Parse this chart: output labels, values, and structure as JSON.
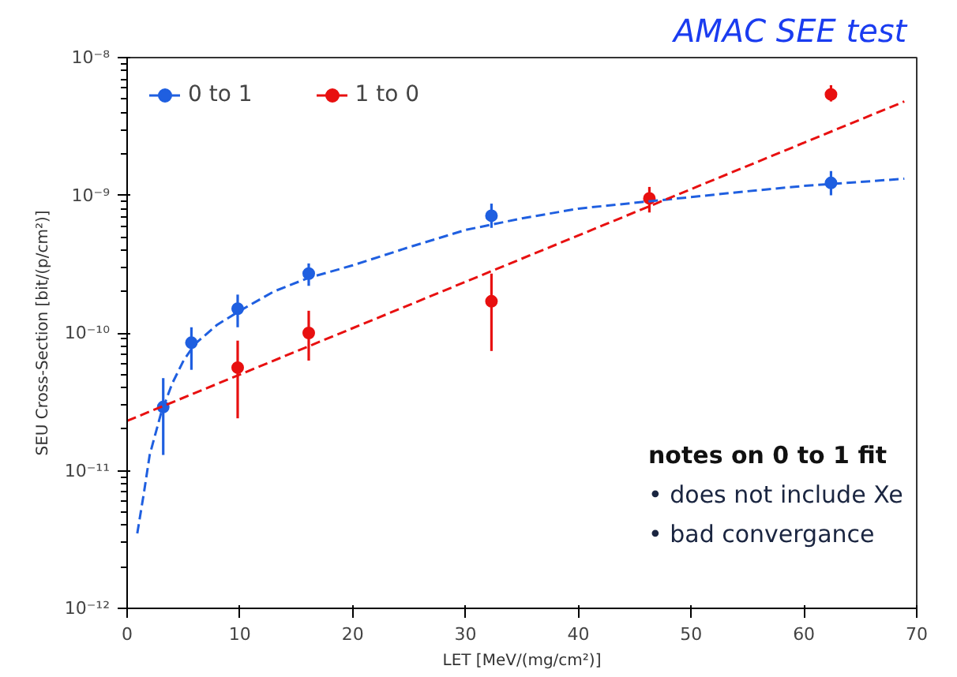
{
  "chart_data": {
    "type": "scatter",
    "title": "AMAC SEE  test",
    "xlabel": "LET [MeV/(mg/cm²)]",
    "ylabel": "SEU Cross-Section [bit/(p/cm²)]",
    "xlim": [
      0,
      70
    ],
    "xticks": [
      0,
      10,
      20,
      30,
      40,
      50,
      60,
      70
    ],
    "ylim": [
      1e-12,
      1e-08
    ],
    "yticks": [
      {
        "value": 1e-12,
        "label": "10⁻¹²"
      },
      {
        "value": 1e-11,
        "label": "10⁻¹¹"
      },
      {
        "value": 1e-10,
        "label": "10⁻¹⁰"
      },
      {
        "value": 1e-09,
        "label": "10⁻⁹"
      },
      {
        "value": 1e-08,
        "label": "10⁻⁸"
      }
    ],
    "log": "y",
    "grid": false,
    "legend": "top left",
    "marker": "circle",
    "annotations": [
      "notes on 0 to 1 fit",
      "•    does not include Xe",
      "•    bad convergance"
    ],
    "series": [
      {
        "name": "0 to 1",
        "color": "#1f5fe0",
        "x": [
          3.2,
          5.7,
          9.8,
          16.1,
          32.3,
          62.4
        ],
        "values": [
          2.9e-11,
          8.5e-11,
          1.5e-10,
          2.7e-10,
          7.1e-10,
          1.23e-09
        ],
        "errors": [
          [
            1.3e-11,
            4.7e-11
          ],
          [
            5.4e-11,
            1.1e-10
          ],
          [
            1.1e-10,
            1.9e-10
          ],
          [
            2.2e-10,
            3.2e-10
          ],
          [
            5.8e-10,
            8.7e-10
          ],
          [
            1e-09,
            1.5e-09
          ]
        ]
      },
      {
        "name": "1 to 0",
        "color": "#e81010",
        "x": [
          9.8,
          16.1,
          32.3,
          46.3,
          62.4
        ],
        "values": [
          5.6e-11,
          1e-10,
          1.7e-10,
          9.5e-10,
          5.4e-09
        ],
        "errors": [
          [
            2.4e-11,
            8.8e-11
          ],
          [
            6.3e-11,
            1.45e-10
          ],
          [
            7.4e-11,
            2.7e-10
          ],
          [
            7.5e-10,
            1.15e-09
          ],
          [
            4.8e-09,
            6.3e-09
          ]
        ]
      },
      {
        "type": "line",
        "color": "#1f5fe0",
        "line_style": "dashed",
        "marker": "none",
        "x": [
          0.9,
          1.5,
          2,
          3,
          4,
          5,
          6,
          8,
          10,
          13,
          16,
          20,
          25,
          30,
          35,
          40,
          46,
          50,
          55,
          60,
          65,
          68.9
        ],
        "values": [
          3.5e-12,
          7e-12,
          1.3e-11,
          2.6e-11,
          4.3e-11,
          6.3e-11,
          8.3e-11,
          1.15e-10,
          1.45e-10,
          2e-10,
          2.5e-10,
          3.1e-10,
          4.2e-10,
          5.6e-10,
          6.8e-10,
          8e-10,
          9e-10,
          9.7e-10,
          1.07e-09,
          1.17e-09,
          1.25e-09,
          1.32e-09
        ]
      },
      {
        "type": "line",
        "color": "#e81010",
        "line_style": "dashed",
        "marker": "none",
        "x": [
          0,
          68.9
        ],
        "values": [
          2.3e-11,
          4.8e-09
        ]
      }
    ]
  }
}
